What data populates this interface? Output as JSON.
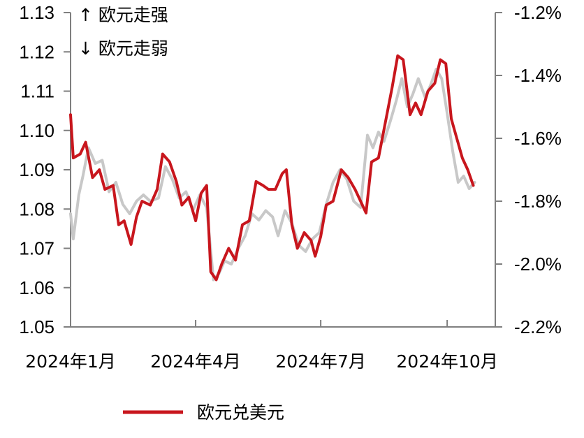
{
  "chart_data": {
    "type": "line",
    "annotations": [
      "↑ 欧元走强",
      "↓ 欧元走弱"
    ],
    "x_tick_labels": [
      "2024年1月",
      "2024年4月",
      "2024年7月",
      "2024年10月"
    ],
    "x_ticks": [
      "2024-01-01",
      "2024-04-01",
      "2024-07-01",
      "2024-10-01"
    ],
    "xlim": [
      "2024-01-01",
      "2024-11-05"
    ],
    "y_left": {
      "ticks": [
        "1.05",
        "1.06",
        "1.07",
        "1.08",
        "1.09",
        "1.10",
        "1.11",
        "1.12",
        "1.13"
      ],
      "range": [
        1.05,
        1.13
      ]
    },
    "y_right": {
      "ticks": [
        "-2.2%",
        "-2.0%",
        "-1.8%",
        "-1.6%",
        "-1.4%",
        "-1.2%"
      ],
      "range": [
        -2.2,
        -1.2
      ],
      "unit": "%"
    },
    "legend_placement": "bottom",
    "series": [
      {
        "name": "欧元兑美元",
        "axis": "left",
        "color": "#c8161d",
        "points": [
          [
            "2024-01-01",
            1.104
          ],
          [
            "2024-01-03",
            1.093
          ],
          [
            "2024-01-08",
            1.094
          ],
          [
            "2024-01-12",
            1.097
          ],
          [
            "2024-01-17",
            1.088
          ],
          [
            "2024-01-22",
            1.09
          ],
          [
            "2024-01-26",
            1.085
          ],
          [
            "2024-02-01",
            1.086
          ],
          [
            "2024-02-05",
            1.076
          ],
          [
            "2024-02-09",
            1.077
          ],
          [
            "2024-02-14",
            1.071
          ],
          [
            "2024-02-18",
            1.078
          ],
          [
            "2024-02-22",
            1.082
          ],
          [
            "2024-02-28",
            1.081
          ],
          [
            "2024-03-04",
            1.085
          ],
          [
            "2024-03-08",
            1.094
          ],
          [
            "2024-03-13",
            1.092
          ],
          [
            "2024-03-18",
            1.087
          ],
          [
            "2024-03-22",
            1.081
          ],
          [
            "2024-03-27",
            1.083
          ],
          [
            "2024-04-01",
            1.077
          ],
          [
            "2024-04-05",
            1.084
          ],
          [
            "2024-04-09",
            1.086
          ],
          [
            "2024-04-12",
            1.064
          ],
          [
            "2024-04-16",
            1.062
          ],
          [
            "2024-04-20",
            1.066
          ],
          [
            "2024-04-25",
            1.07
          ],
          [
            "2024-04-30",
            1.067
          ],
          [
            "2024-05-05",
            1.076
          ],
          [
            "2024-05-10",
            1.077
          ],
          [
            "2024-05-15",
            1.087
          ],
          [
            "2024-05-20",
            1.086
          ],
          [
            "2024-05-24",
            1.085
          ],
          [
            "2024-05-29",
            1.085
          ],
          [
            "2024-06-03",
            1.089
          ],
          [
            "2024-06-06",
            1.09
          ],
          [
            "2024-06-10",
            1.076
          ],
          [
            "2024-06-14",
            1.07
          ],
          [
            "2024-06-19",
            1.074
          ],
          [
            "2024-06-24",
            1.072
          ],
          [
            "2024-06-27",
            1.068
          ],
          [
            "2024-07-01",
            1.073
          ],
          [
            "2024-07-05",
            1.081
          ],
          [
            "2024-07-10",
            1.082
          ],
          [
            "2024-07-16",
            1.09
          ],
          [
            "2024-07-21",
            1.088
          ],
          [
            "2024-07-26",
            1.085
          ],
          [
            "2024-07-30",
            1.082
          ],
          [
            "2024-08-03",
            1.079
          ],
          [
            "2024-08-07",
            1.092
          ],
          [
            "2024-08-12",
            1.093
          ],
          [
            "2024-08-17",
            1.102
          ],
          [
            "2024-08-22",
            1.111
          ],
          [
            "2024-08-26",
            1.119
          ],
          [
            "2024-08-30",
            1.118
          ],
          [
            "2024-09-04",
            1.104
          ],
          [
            "2024-09-08",
            1.107
          ],
          [
            "2024-09-12",
            1.104
          ],
          [
            "2024-09-17",
            1.11
          ],
          [
            "2024-09-22",
            1.112
          ],
          [
            "2024-09-26",
            1.118
          ],
          [
            "2024-09-30",
            1.117
          ],
          [
            "2024-10-04",
            1.103
          ],
          [
            "2024-10-08",
            1.098
          ],
          [
            "2024-10-12",
            1.093
          ],
          [
            "2024-10-16",
            1.09
          ],
          [
            "2024-10-20",
            1.086
          ]
        ]
      },
      {
        "axis": "right",
        "color": "#c8c8c8",
        "points": [
          [
            "2024-01-01",
            -1.84
          ],
          [
            "2024-01-03",
            -1.92
          ],
          [
            "2024-01-07",
            -1.78
          ],
          [
            "2024-01-10",
            -1.72
          ],
          [
            "2024-01-14",
            -1.63
          ],
          [
            "2024-01-19",
            -1.68
          ],
          [
            "2024-01-24",
            -1.67
          ],
          [
            "2024-01-29",
            -1.77
          ],
          [
            "2024-02-03",
            -1.74
          ],
          [
            "2024-02-08",
            -1.81
          ],
          [
            "2024-02-13",
            -1.84
          ],
          [
            "2024-02-18",
            -1.8
          ],
          [
            "2024-02-23",
            -1.78
          ],
          [
            "2024-02-28",
            -1.8
          ],
          [
            "2024-03-05",
            -1.79
          ],
          [
            "2024-03-10",
            -1.69
          ],
          [
            "2024-03-15",
            -1.73
          ],
          [
            "2024-03-20",
            -1.79
          ],
          [
            "2024-03-25",
            -1.77
          ],
          [
            "2024-03-30",
            -1.83
          ],
          [
            "2024-04-04",
            -1.78
          ],
          [
            "2024-04-09",
            -1.82
          ],
          [
            "2024-04-14",
            -2.05
          ],
          [
            "2024-04-18",
            -2.03
          ],
          [
            "2024-04-22",
            -1.99
          ],
          [
            "2024-04-27",
            -2.0
          ],
          [
            "2024-05-02",
            -1.95
          ],
          [
            "2024-05-07",
            -1.91
          ],
          [
            "2024-05-12",
            -1.84
          ],
          [
            "2024-05-17",
            -1.86
          ],
          [
            "2024-05-22",
            -1.83
          ],
          [
            "2024-05-27",
            -1.85
          ],
          [
            "2024-05-31",
            -1.91
          ],
          [
            "2024-06-05",
            -1.83
          ],
          [
            "2024-06-10",
            -1.87
          ],
          [
            "2024-06-15",
            -1.94
          ],
          [
            "2024-06-20",
            -1.96
          ],
          [
            "2024-06-25",
            -1.92
          ],
          [
            "2024-06-30",
            -1.9
          ],
          [
            "2024-07-05",
            -1.81
          ],
          [
            "2024-07-10",
            -1.74
          ],
          [
            "2024-07-15",
            -1.7
          ],
          [
            "2024-07-20",
            -1.73
          ],
          [
            "2024-07-25",
            -1.8
          ],
          [
            "2024-07-30",
            -1.82
          ],
          [
            "2024-08-04",
            -1.59
          ],
          [
            "2024-08-08",
            -1.63
          ],
          [
            "2024-08-12",
            -1.58
          ],
          [
            "2024-08-16",
            -1.61
          ],
          [
            "2024-08-21",
            -1.54
          ],
          [
            "2024-08-25",
            -1.48
          ],
          [
            "2024-08-29",
            -1.41
          ],
          [
            "2024-09-02",
            -1.5
          ],
          [
            "2024-09-06",
            -1.46
          ],
          [
            "2024-09-10",
            -1.41
          ],
          [
            "2024-09-15",
            -1.47
          ],
          [
            "2024-09-19",
            -1.43
          ],
          [
            "2024-09-23",
            -1.38
          ],
          [
            "2024-09-27",
            -1.41
          ],
          [
            "2024-10-01",
            -1.52
          ],
          [
            "2024-10-05",
            -1.64
          ],
          [
            "2024-10-09",
            -1.74
          ],
          [
            "2024-10-13",
            -1.72
          ],
          [
            "2024-10-17",
            -1.76
          ],
          [
            "2024-10-21",
            -1.74
          ]
        ]
      }
    ]
  }
}
